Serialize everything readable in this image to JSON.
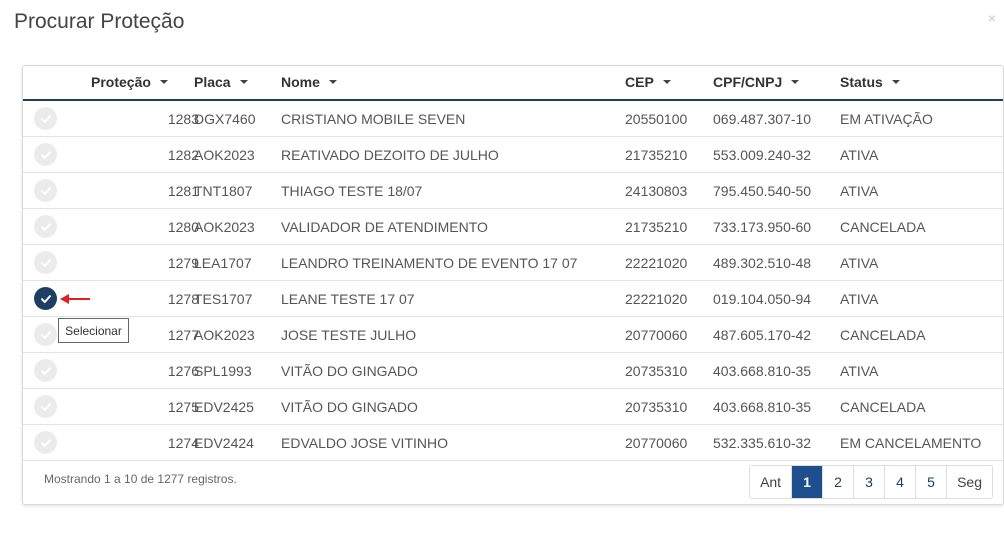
{
  "modal": {
    "title": "Procurar Proteção",
    "close_label": "×"
  },
  "columns": {
    "protecao": "Proteção",
    "placa": "Placa",
    "nome": "Nome",
    "cep": "CEP",
    "cpf": "CPF/CNPJ",
    "status": "Status"
  },
  "rows": [
    {
      "protecao": "1283",
      "placa": "DGX7460",
      "nome": "CRISTIANO MOBILE SEVEN",
      "cep": "20550100",
      "cpf": "069.487.307-10",
      "status": "EM ATIVAÇÃO",
      "selected": false
    },
    {
      "protecao": "1282",
      "placa": "AOK2023",
      "nome": "REATIVADO DEZOITO DE JULHO",
      "cep": "21735210",
      "cpf": "553.009.240-32",
      "status": "ATIVA",
      "selected": false
    },
    {
      "protecao": "1281",
      "placa": "TNT1807",
      "nome": "THIAGO TESTE 18/07",
      "cep": "24130803",
      "cpf": "795.450.540-50",
      "status": "ATIVA",
      "selected": false
    },
    {
      "protecao": "1280",
      "placa": "AOK2023",
      "nome": "VALIDADOR DE ATENDIMENTO",
      "cep": "21735210",
      "cpf": "733.173.950-60",
      "status": "CANCELADA",
      "selected": false
    },
    {
      "protecao": "1279",
      "placa": "LEA1707",
      "nome": "LEANDRO TREINAMENTO DE EVENTO 17 07",
      "cep": "22221020",
      "cpf": "489.302.510-48",
      "status": "ATIVA",
      "selected": false
    },
    {
      "protecao": "1278",
      "placa": "TES1707",
      "nome": "LEANE TESTE 17 07",
      "cep": "22221020",
      "cpf": "019.104.050-94",
      "status": "ATIVA",
      "selected": true
    },
    {
      "protecao": "1277",
      "placa": "AOK2023",
      "nome": "JOSE TESTE JULHO",
      "cep": "20770060",
      "cpf": "487.605.170-42",
      "status": "CANCELADA",
      "selected": false
    },
    {
      "protecao": "1276",
      "placa": "SPL1993",
      "nome": "VITÃO DO GINGADO",
      "cep": "20735310",
      "cpf": "403.668.810-35",
      "status": "ATIVA",
      "selected": false
    },
    {
      "protecao": "1275",
      "placa": "EDV2425",
      "nome": "VITÃO DO GINGADO",
      "cep": "20735310",
      "cpf": "403.668.810-35",
      "status": "CANCELADA",
      "selected": false
    },
    {
      "protecao": "1274",
      "placa": "EDV2424",
      "nome": "EDVALDO JOSE VITINHO",
      "cep": "20770060",
      "cpf": "532.335.610-32",
      "status": "EM CANCELAMENTO",
      "selected": false
    }
  ],
  "tooltip": "Selecionar",
  "footer": {
    "info": "Mostrando 1 a 10 de 1277 registros."
  },
  "pagination": {
    "prev": "Ant",
    "pages": [
      "1",
      "2",
      "3",
      "4",
      "5"
    ],
    "active": "1",
    "next": "Seg"
  },
  "colors": {
    "accent": "#1f3e63",
    "active_page": "#1f4e8c",
    "arrow": "#e02020",
    "check_inactive": "#ebebeb"
  },
  "icons": {
    "row_check": "check-circle-icon",
    "pointer": "red-arrow-icon",
    "close": "close-icon"
  }
}
